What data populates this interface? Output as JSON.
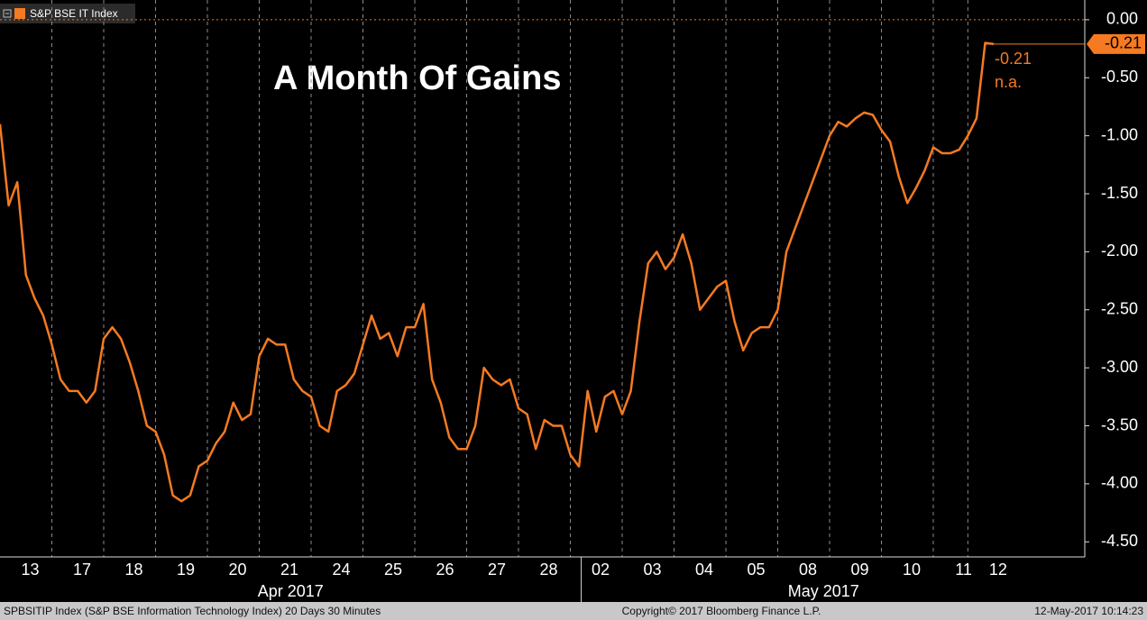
{
  "chart_data": {
    "type": "line",
    "title": "A Month Of Gains",
    "legend_label": "S&P BSE IT Index",
    "categories": [
      null,
      null,
      null,
      "13",
      null,
      null,
      null,
      null,
      null,
      "17",
      null,
      null,
      null,
      null,
      null,
      "18",
      null,
      null,
      null,
      null,
      null,
      "19",
      null,
      null,
      null,
      null,
      null,
      "20",
      null,
      null,
      null,
      null,
      null,
      "21",
      null,
      null,
      null,
      null,
      null,
      "24",
      null,
      null,
      null,
      null,
      null,
      "25",
      null,
      null,
      null,
      null,
      null,
      "26",
      null,
      null,
      null,
      null,
      null,
      "27",
      null,
      null,
      null,
      null,
      null,
      "28",
      null,
      null,
      null,
      null,
      null,
      "02",
      null,
      null,
      null,
      null,
      null,
      "03",
      null,
      null,
      null,
      null,
      null,
      "04",
      null,
      null,
      null,
      null,
      null,
      "05",
      null,
      null,
      null,
      null,
      null,
      "08",
      null,
      null,
      null,
      null,
      null,
      "09",
      null,
      null,
      null,
      null,
      null,
      "10",
      null,
      null,
      null,
      null,
      null,
      "11",
      null,
      null,
      null,
      "12"
    ],
    "series": [
      {
        "name": "S&P BSE IT Index",
        "color": "#f57a22",
        "values": [
          -0.9,
          -1.6,
          -1.4,
          -2.2,
          -2.4,
          -2.55,
          -2.8,
          -3.1,
          -3.2,
          -3.2,
          -3.3,
          -3.2,
          -2.75,
          -2.65,
          -2.75,
          -2.95,
          -3.2,
          -3.5,
          -3.55,
          -3.75,
          -4.1,
          -4.15,
          -4.1,
          -3.85,
          -3.8,
          -3.65,
          -3.55,
          -3.3,
          -3.45,
          -3.4,
          -2.9,
          -2.75,
          -2.8,
          -2.8,
          -3.1,
          -3.2,
          -3.25,
          -3.5,
          -3.55,
          -3.2,
          -3.15,
          -3.05,
          -2.8,
          -2.55,
          -2.75,
          -2.7,
          -2.9,
          -2.65,
          -2.65,
          -2.45,
          -3.1,
          -3.3,
          -3.6,
          -3.7,
          -3.7,
          -3.5,
          -3.0,
          -3.1,
          -3.15,
          -3.1,
          -3.35,
          -3.4,
          -3.7,
          -3.45,
          -3.5,
          -3.5,
          -3.75,
          -3.85,
          -3.2,
          -3.55,
          -3.25,
          -3.2,
          -3.4,
          -3.2,
          -2.6,
          -2.1,
          -2.0,
          -2.15,
          -2.05,
          -1.85,
          -2.1,
          -2.5,
          -2.4,
          -2.3,
          -2.25,
          -2.6,
          -2.85,
          -2.7,
          -2.65,
          -2.65,
          -2.5,
          -2.0,
          -1.8,
          -1.6,
          -1.4,
          -1.2,
          -1.0,
          -0.88,
          -0.92,
          -0.85,
          -0.8,
          -0.82,
          -0.95,
          -1.05,
          -1.35,
          -1.58,
          -1.45,
          -1.3,
          -1.1,
          -1.15,
          -1.15,
          -1.12,
          -1.0,
          -0.85,
          -0.2,
          -0.21
        ]
      }
    ],
    "ylim": [
      -4.63,
      0.17
    ],
    "yticks": [
      {
        "value": 0,
        "label": "0.00"
      },
      {
        "value": -0.5,
        "label": "-0.50"
      },
      {
        "value": -1,
        "label": "-1.00"
      },
      {
        "value": -1.5,
        "label": "-1.50"
      },
      {
        "value": -2,
        "label": "-2.00"
      },
      {
        "value": -2.5,
        "label": "-2.50"
      },
      {
        "value": -3,
        "label": "-3.00"
      },
      {
        "value": -3.5,
        "label": "-3.50"
      },
      {
        "value": -4,
        "label": "-4.00"
      },
      {
        "value": -4.5,
        "label": "-4.50"
      }
    ],
    "last_value": {
      "value": -0.21,
      "label": "-0.21"
    },
    "legend_values": [
      "-0.21",
      "n.a."
    ],
    "x_group_labels": [
      "Apr 2017",
      "May 2017"
    ],
    "footer": {
      "left": "SPBSITIP Index (S&P BSE Information Technology Index) 20 Days 30 Minutes",
      "center": "Copyright© 2017 Bloomberg Finance L.P.",
      "right": "12-May-2017 10:14:23"
    },
    "grid": true
  }
}
